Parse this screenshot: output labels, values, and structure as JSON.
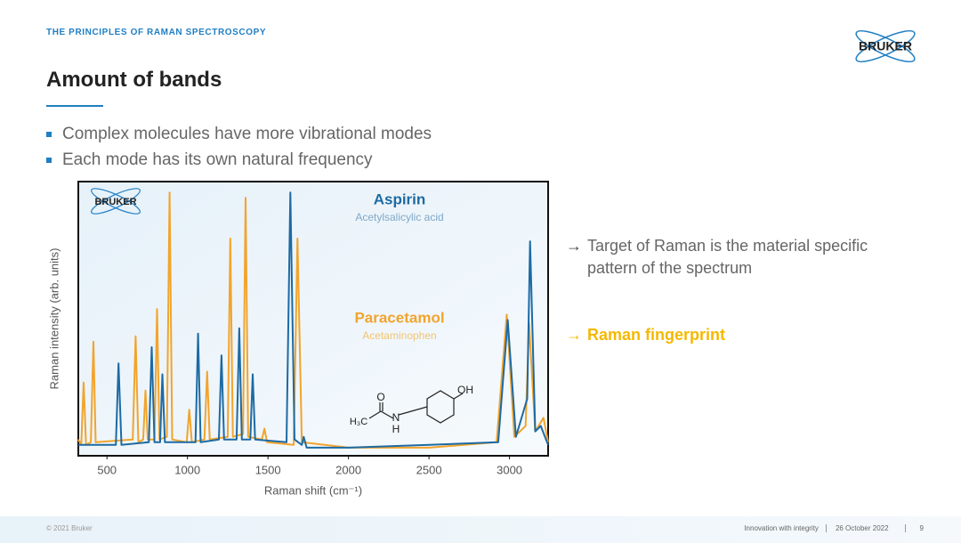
{
  "header": {
    "kicker": "THE PRINCIPLES OF RAMAN SPECTROSCOPY",
    "logo": "BRUKER",
    "title": "Amount of bands"
  },
  "bullets": [
    "Complex molecules have more vibrational modes",
    "Each mode has its own natural frequency"
  ],
  "notes": [
    {
      "arrow": "→",
      "text": "Target of Raman is the material specific pattern of the spectrum"
    },
    {
      "arrow": "→",
      "text": "Raman fingerprint"
    }
  ],
  "chart_data": {
    "type": "line",
    "logo": "BRUKER",
    "x_label": "Raman shift (cm⁻¹)",
    "y_label": "Raman intensity (arb. units)",
    "xlim": [
      322,
      3240
    ],
    "ylim": [
      -1,
      100
    ],
    "xticks": [
      500,
      1000,
      1500,
      2000,
      2500,
      3000
    ],
    "structure_labels": [
      "O",
      "OH",
      "H₃C",
      "N",
      "H"
    ],
    "series": [
      {
        "name": "Paracetamol",
        "subtitle": "Acetaminophen",
        "color": "#f2a42c",
        "x": [
          322,
          340,
          355,
          370,
          400,
          416,
          430,
          660,
          678,
          695,
          725,
          739,
          753,
          795,
          811,
          826,
          872,
          889,
          905,
          995,
          1011,
          1027,
          1105,
          1122,
          1138,
          1250,
          1266,
          1282,
          1345,
          1361,
          1377,
          1462,
          1478,
          1494,
          1660,
          1683,
          1710,
          2000,
          2500,
          2920,
          2983,
          3030,
          3100,
          3122,
          3160,
          3211,
          3240
        ],
        "values": [
          5,
          3,
          26,
          3,
          4,
          41,
          4,
          5,
          43,
          4,
          5,
          23,
          5,
          5,
          53,
          5,
          6,
          96,
          5,
          4,
          16,
          4,
          5,
          30,
          5,
          6,
          79,
          6,
          7,
          94,
          6,
          5,
          9,
          4,
          3,
          79,
          4,
          2,
          2,
          4,
          51,
          6,
          10,
          48,
          8,
          13,
          4
        ]
      },
      {
        "name": "Aspirin",
        "subtitle": "Acetylsalicylic acid",
        "color": "#1d6aa3",
        "x": [
          322,
          555,
          572,
          590,
          760,
          778,
          795,
          830,
          844,
          860,
          1050,
          1066,
          1082,
          1195,
          1211,
          1227,
          1305,
          1322,
          1338,
          1390,
          1405,
          1420,
          1615,
          1639,
          1665,
          1710,
          1722,
          1740,
          2000,
          2500,
          2930,
          2989,
          3040,
          3110,
          3128,
          3160,
          3194,
          3240
        ],
        "values": [
          3,
          3,
          33,
          3,
          4,
          39,
          4,
          4,
          29,
          4,
          4,
          44,
          4,
          5,
          36,
          5,
          5,
          46,
          5,
          5,
          29,
          5,
          4,
          96,
          5,
          3,
          6,
          2,
          2,
          3,
          4,
          49,
          6,
          20,
          78,
          8,
          10,
          3
        ]
      }
    ]
  },
  "footer": {
    "copyright": "© 2021 Bruker",
    "tagline": "Innovation with integrity",
    "date": "26 October 2022",
    "page": "9"
  }
}
